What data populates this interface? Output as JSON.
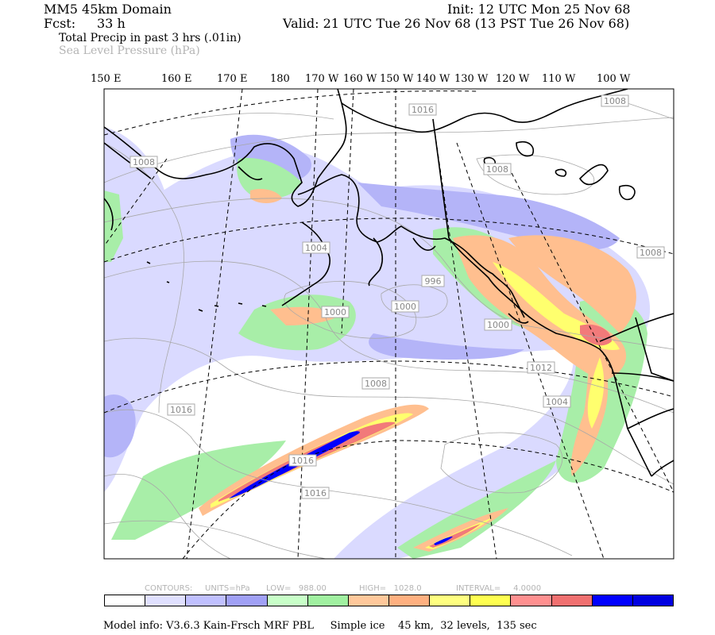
{
  "header": {
    "domain": "MM5 45km Domain",
    "fcst_label": "Fcst:",
    "fcst_value": "33 h",
    "init": "Init: 12 UTC Mon 25 Nov 68",
    "valid": "Valid: 21 UTC Tue 26 Nov 68 (13 PST Tue 26 Nov 68)",
    "field1": "Total Precip in past 3 hrs (.01in)",
    "field2": "Sea Level Pressure (hPa)"
  },
  "longitudes": [
    "150 E",
    "160 E",
    "170 E",
    "180",
    "170 W",
    "160 W",
    "150 W",
    "140 W",
    "130 W",
    "120 W",
    "110 W",
    "100 W"
  ],
  "isobar_labels": [
    "1016",
    "1008",
    "1008",
    "1008",
    "1008",
    "1004",
    "996",
    "1000",
    "1000",
    "1000",
    "1012",
    "1004",
    "1016",
    "1008",
    "1016",
    "1016"
  ],
  "contours": {
    "label": "CONTOURS:",
    "units": "UNITS=hPa",
    "low": "LOW=   988.00",
    "high": "HIGH=   1028.0",
    "interval": "INTERVAL=     4.0000"
  },
  "colorbar_colors": [
    "#ffffff",
    "#e0e0ff",
    "#c0c0ff",
    "#a0a0f5",
    "#c8ffc8",
    "#a0f0a0",
    "#ffc89b",
    "#ffb080",
    "#ffff80",
    "#ffff50",
    "#ff9090",
    "#f07070",
    "#0000ff",
    "#0000e0"
  ],
  "precip_colors": {
    "light": "#dadaff",
    "lav": "#b4b4f8",
    "green": "#a8eea8",
    "orange": "#ffbf8f",
    "yellow": "#ffff6e",
    "red": "#f27a7a",
    "blue": "#0000ff"
  },
  "model_info": "Model info: V3.6.3 Kain-Frsch MRF PBL     Simple ice    45 km,  32 levels,  135 sec"
}
